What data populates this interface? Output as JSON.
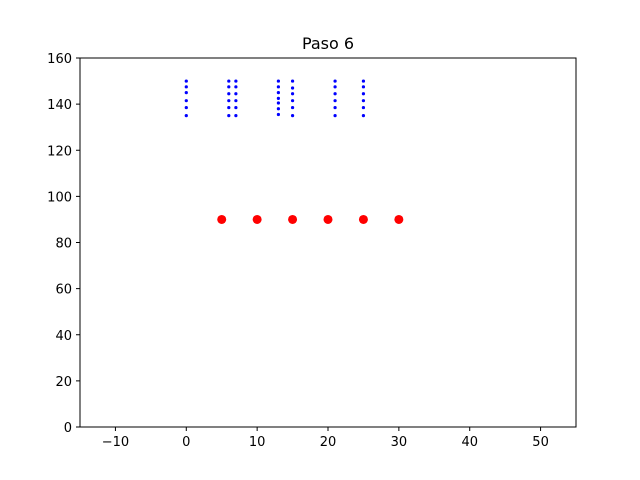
{
  "chart_data": {
    "type": "scatter",
    "title": "Paso 6",
    "xlabel": "",
    "ylabel": "",
    "xlim": [
      -15,
      55
    ],
    "ylim": [
      0,
      160
    ],
    "xticks": [
      -10,
      0,
      10,
      20,
      30,
      40,
      50
    ],
    "xtick_labels": [
      "−10",
      "0",
      "10",
      "20",
      "30",
      "40",
      "50"
    ],
    "yticks": [
      0,
      20,
      40,
      60,
      80,
      100,
      120,
      140,
      160
    ],
    "ytick_labels": [
      "0",
      "20",
      "40",
      "60",
      "80",
      "100",
      "120",
      "140",
      "160"
    ],
    "grid": false,
    "series": [
      {
        "color": "#0000ff",
        "marker": "small-dot",
        "points": [
          [
            0,
            150
          ],
          [
            0,
            147.5
          ],
          [
            0,
            145
          ],
          [
            0,
            141.5
          ],
          [
            0,
            138.5
          ],
          [
            0,
            135
          ],
          [
            6,
            150
          ],
          [
            6,
            147.5
          ],
          [
            6,
            144.5
          ],
          [
            6,
            141.5
          ],
          [
            6,
            138.5
          ],
          [
            6,
            135
          ],
          [
            7,
            150
          ],
          [
            7,
            147.5
          ],
          [
            7,
            144.5
          ],
          [
            7,
            141.5
          ],
          [
            7,
            138.5
          ],
          [
            7,
            135
          ],
          [
            13,
            150
          ],
          [
            13,
            147.5
          ],
          [
            13,
            145
          ],
          [
            13,
            142.5
          ],
          [
            13,
            140.5
          ],
          [
            13,
            138
          ],
          [
            13,
            135.5
          ],
          [
            15,
            150
          ],
          [
            15,
            147
          ],
          [
            15,
            144.5
          ],
          [
            15,
            141.5
          ],
          [
            15,
            138.5
          ],
          [
            15,
            135
          ],
          [
            21,
            150
          ],
          [
            21,
            147.5
          ],
          [
            21,
            144.5
          ],
          [
            21,
            141.5
          ],
          [
            21,
            138.5
          ],
          [
            21,
            135
          ],
          [
            25,
            150
          ],
          [
            25,
            147.5
          ],
          [
            25,
            144.5
          ],
          [
            25,
            141.5
          ],
          [
            25,
            138.5
          ],
          [
            25,
            135
          ]
        ]
      },
      {
        "color": "#ff0000",
        "marker": "large-dot",
        "points": [
          [
            5,
            90
          ],
          [
            10,
            90
          ],
          [
            15,
            90
          ],
          [
            20,
            90
          ],
          [
            25,
            90
          ],
          [
            30,
            90
          ]
        ]
      }
    ]
  }
}
